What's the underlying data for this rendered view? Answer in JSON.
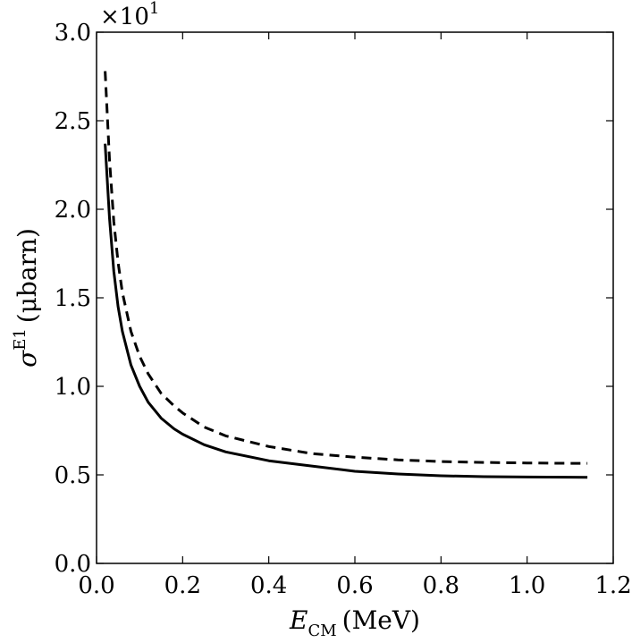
{
  "chart_data": {
    "type": "line",
    "xlabel": {
      "main": "E",
      "sub": "CM",
      "unit": "(MeV)"
    },
    "ylabel": {
      "main": "σ",
      "sup": "E1",
      "unit": "(μbarn)"
    },
    "y_multiplier": {
      "base": "×10",
      "exponent": "1"
    },
    "xlim": [
      0.0,
      1.2
    ],
    "ylim": [
      0.0,
      3.0
    ],
    "x_ticks": [
      "0.0",
      "0.2",
      "0.4",
      "0.6",
      "0.8",
      "1.0",
      "1.2"
    ],
    "y_ticks": [
      "0.0",
      "0.5",
      "1.0",
      "1.5",
      "2.0",
      "2.5",
      "3.0"
    ],
    "grid": false,
    "legend": "none",
    "series": [
      {
        "style": "solid",
        "color": "#000000",
        "x": [
          0.02,
          0.03,
          0.04,
          0.05,
          0.06,
          0.08,
          0.1,
          0.12,
          0.15,
          0.18,
          0.2,
          0.25,
          0.3,
          0.4,
          0.5,
          0.6,
          0.7,
          0.8,
          0.9,
          1.0,
          1.1,
          1.14
        ],
        "y": [
          2.37,
          1.95,
          1.65,
          1.45,
          1.31,
          1.12,
          1.0,
          0.91,
          0.82,
          0.76,
          0.73,
          0.67,
          0.63,
          0.58,
          0.55,
          0.52,
          0.505,
          0.495,
          0.49,
          0.488,
          0.487,
          0.486
        ]
      },
      {
        "style": "dashed",
        "color": "#000000",
        "x": [
          0.02,
          0.03,
          0.04,
          0.05,
          0.06,
          0.08,
          0.1,
          0.12,
          0.15,
          0.18,
          0.2,
          0.25,
          0.3,
          0.4,
          0.5,
          0.6,
          0.7,
          0.8,
          0.9,
          1.0,
          1.1,
          1.14
        ],
        "y": [
          2.78,
          2.28,
          1.93,
          1.7,
          1.53,
          1.31,
          1.17,
          1.07,
          0.96,
          0.89,
          0.85,
          0.77,
          0.72,
          0.66,
          0.62,
          0.6,
          0.585,
          0.575,
          0.57,
          0.567,
          0.565,
          0.565
        ]
      }
    ]
  }
}
